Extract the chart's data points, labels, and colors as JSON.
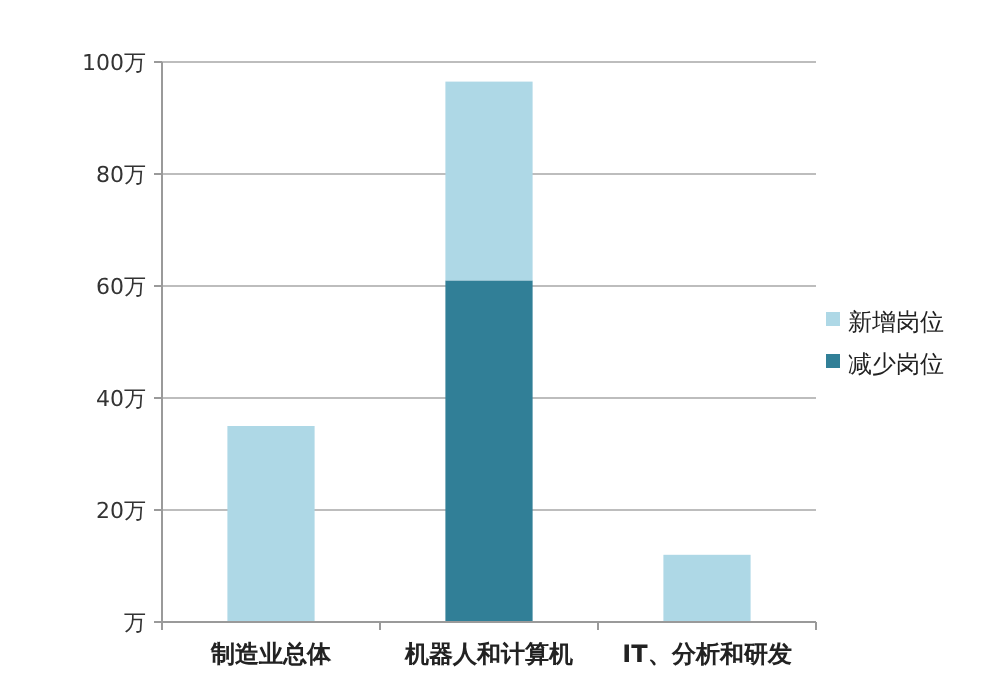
{
  "chart_data": {
    "type": "bar",
    "stacked": true,
    "categories": [
      "制造业总体",
      "机器人和计算机",
      "IT、分析和研发"
    ],
    "series": [
      {
        "name": "减少岗位",
        "color": "#317f97",
        "values": [
          null,
          61,
          null
        ]
      },
      {
        "name": "新增岗位",
        "color": "#aed8e6",
        "values": [
          35,
          35.5,
          12
        ]
      }
    ],
    "ylim": [
      0,
      100
    ],
    "yticks": [
      {
        "value": 0,
        "label": "万"
      },
      {
        "value": 20,
        "label": "20万"
      },
      {
        "value": 40,
        "label": "40万"
      },
      {
        "value": 60,
        "label": "60万"
      },
      {
        "value": 80,
        "label": "80万"
      },
      {
        "value": 100,
        "label": "100万"
      }
    ],
    "grid": "y",
    "legend": "right"
  }
}
